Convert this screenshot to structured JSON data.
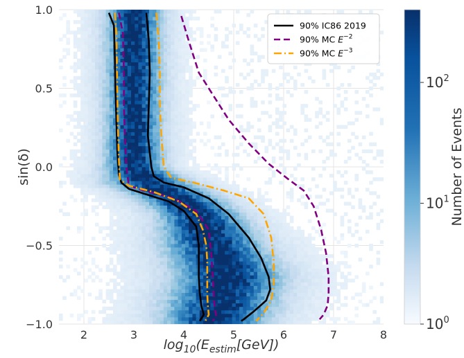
{
  "chart_data": {
    "type": "heatmap",
    "title": "",
    "xlabel": "log10(E_estim[GeV])",
    "ylabel": "sin(δ)",
    "xlim": [
      1.5,
      8
    ],
    "ylim": [
      -1.0,
      1.0
    ],
    "xticks": [
      "2",
      "3",
      "4",
      "5",
      "6",
      "7",
      "8"
    ],
    "yticks": [
      "1.0",
      "0.5",
      "0.0",
      "−0.5",
      "−1.0"
    ],
    "grid": true,
    "legend_position": "top-right",
    "colorbar": {
      "label": "Number of Events",
      "scale": "log",
      "range": [
        1,
        400
      ],
      "ticks": [
        {
          "base": "10",
          "exp": "0",
          "value": 1
        },
        {
          "base": "10",
          "exp": "1",
          "value": 10
        },
        {
          "base": "10",
          "exp": "2",
          "value": 100
        }
      ],
      "colormap": "Blues"
    },
    "density_ridge": {
      "sin_dec": [
        1.0,
        0.5,
        0.2,
        0.0,
        -0.1,
        -0.2,
        -0.3,
        -0.5,
        -0.7,
        -0.9,
        -1.0
      ],
      "center": [
        3.0,
        3.0,
        3.0,
        3.0,
        3.3,
        3.9,
        4.3,
        4.6,
        4.9,
        4.7,
        4.6
      ],
      "width": [
        0.3,
        0.3,
        0.3,
        0.32,
        0.45,
        0.45,
        0.45,
        0.55,
        0.6,
        0.6,
        0.55
      ]
    },
    "series": [
      {
        "name": "90% IC86 2019",
        "color": "#000000",
        "style": "solid",
        "left": {
          "x": [
            2.5,
            2.6,
            2.62,
            2.63,
            2.65,
            2.67,
            2.7,
            2.75,
            2.9,
            3.3,
            3.7,
            4.0,
            4.25,
            4.3,
            4.3,
            4.3,
            4.32,
            4.35,
            4.4,
            4.32
          ],
          "y": [
            0.98,
            0.9,
            0.7,
            0.5,
            0.3,
            0.1,
            -0.05,
            -0.1,
            -0.14,
            -0.18,
            -0.22,
            -0.28,
            -0.38,
            -0.5,
            -0.6,
            -0.7,
            -0.8,
            -0.88,
            -0.94,
            -0.98
          ]
        },
        "right": {
          "x": [
            3.25,
            3.3,
            3.32,
            3.3,
            3.28,
            3.35,
            3.4,
            3.6,
            4.0,
            4.5,
            4.9,
            5.3,
            5.55,
            5.7,
            5.73,
            5.65,
            5.4,
            5.2,
            5.15
          ],
          "y": [
            0.98,
            0.8,
            0.6,
            0.4,
            0.2,
            0.0,
            -0.06,
            -0.1,
            -0.13,
            -0.2,
            -0.3,
            -0.45,
            -0.58,
            -0.7,
            -0.78,
            -0.85,
            -0.92,
            -0.97,
            -0.98
          ]
        }
      },
      {
        "name": "90% MC E^−2",
        "color": "#800080",
        "style": "dashed",
        "left": {
          "x": [
            2.7,
            2.78,
            2.8,
            2.8,
            2.82,
            2.85,
            2.9,
            3.2,
            3.8,
            4.25,
            4.5,
            4.55,
            4.58,
            4.6,
            4.62,
            4.65,
            4.58
          ],
          "y": [
            0.98,
            0.85,
            0.6,
            0.4,
            0.2,
            0.0,
            -0.12,
            -0.15,
            -0.2,
            -0.28,
            -0.4,
            -0.55,
            -0.7,
            -0.82,
            -0.9,
            -0.95,
            -0.98
          ]
        },
        "right": {
          "x": [
            3.95,
            4.1,
            4.3,
            4.6,
            4.9,
            5.3,
            5.7,
            6.1,
            6.4,
            6.6,
            6.75,
            6.85,
            6.9,
            6.9,
            6.88,
            6.8,
            6.72
          ],
          "y": [
            0.96,
            0.8,
            0.6,
            0.45,
            0.3,
            0.15,
            0.02,
            -0.08,
            -0.15,
            -0.25,
            -0.4,
            -0.55,
            -0.7,
            -0.8,
            -0.88,
            -0.94,
            -0.97
          ]
        }
      },
      {
        "name": "90% MC E^−3",
        "color": "#FFA500",
        "style": "dashdot",
        "left": {
          "x": [
            2.62,
            2.65,
            2.66,
            2.67,
            2.68,
            2.7,
            2.72,
            2.9,
            3.4,
            3.9,
            4.25,
            4.38,
            4.45,
            4.47,
            4.47,
            4.47,
            4.48,
            4.5,
            4.43
          ],
          "y": [
            0.98,
            0.85,
            0.65,
            0.45,
            0.25,
            0.05,
            -0.08,
            -0.12,
            -0.16,
            -0.22,
            -0.3,
            -0.4,
            -0.5,
            -0.6,
            -0.7,
            -0.8,
            -0.88,
            -0.94,
            -0.98
          ]
        },
        "right": {
          "x": [
            3.45,
            3.5,
            3.52,
            3.52,
            3.55,
            3.6,
            3.75,
            4.2,
            4.8,
            5.3,
            5.6,
            5.75,
            5.8,
            5.8,
            5.75,
            5.6,
            5.45
          ],
          "y": [
            0.98,
            0.8,
            0.6,
            0.4,
            0.2,
            0.0,
            -0.07,
            -0.1,
            -0.15,
            -0.2,
            -0.3,
            -0.45,
            -0.6,
            -0.75,
            -0.85,
            -0.93,
            -0.98
          ]
        }
      }
    ]
  }
}
